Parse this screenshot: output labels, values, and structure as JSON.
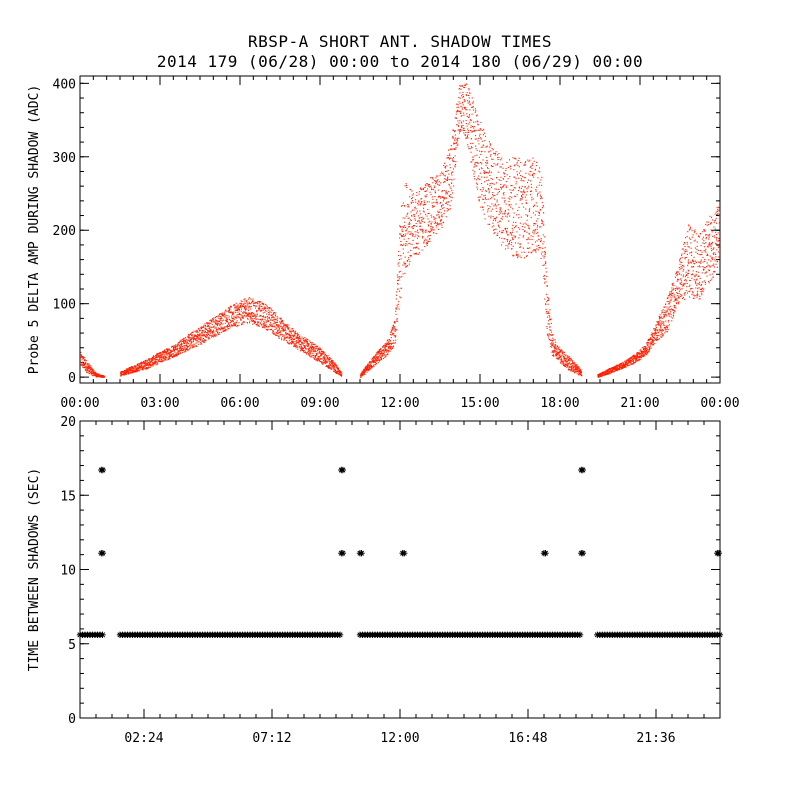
{
  "chart_data": [
    {
      "type": "scatter",
      "title": "RBSP-A SHORT ANT. SHADOW TIMES",
      "subtitle": "2014 179 (06/28) 00:00 to 2014 180 (06/29) 00:00",
      "xlabel": "",
      "ylabel": "Probe 5 DELTA AMP DURING SHADOW (ADC)",
      "xlim": [
        0,
        24
      ],
      "ylim": [
        -8,
        410
      ],
      "xtick_values": [
        0,
        3,
        6,
        9,
        12,
        15,
        18,
        21,
        24
      ],
      "xtick_labels": [
        "00:00",
        "03:00",
        "06:00",
        "09:00",
        "12:00",
        "15:00",
        "18:00",
        "21:00",
        "00:00"
      ],
      "ytick_values": [
        0,
        100,
        200,
        300,
        400
      ],
      "ytick_labels": [
        "0",
        "100",
        "200",
        "300",
        "400"
      ],
      "color": "#ff2000",
      "series_envelope": {
        "name": "Probe 5 delta amplitude",
        "segments": [
          {
            "x": [
              0.0,
              0.2,
              0.45,
              0.6,
              0.9
            ],
            "lower": [
              15,
              8,
              3,
              1,
              0
            ],
            "upper": [
              35,
              25,
              12,
              6,
              2
            ]
          },
          {
            "x": [
              1.5,
              2.5,
              3.5,
              4.5,
              5.5,
              6.3,
              7.0,
              7.5,
              8.0,
              9.0,
              9.5,
              9.8
            ],
            "lower": [
              2,
              12,
              28,
              45,
              65,
              75,
              65,
              52,
              42,
              20,
              8,
              1
            ],
            "upper": [
              8,
              25,
              45,
              70,
              95,
              110,
              100,
              82,
              65,
              40,
              22,
              6
            ]
          },
          {
            "x": [
              10.5,
              11.0,
              11.5,
              11.8,
              12.0,
              12.2,
              12.5,
              13.0,
              13.5,
              13.9,
              14.2,
              14.5,
              14.9,
              15.2,
              15.6,
              16.0,
              16.5,
              17.0,
              17.3,
              17.5,
              17.7,
              17.9,
              18.0,
              18.3,
              18.6,
              18.8
            ],
            "lower": [
              0,
              15,
              30,
              45,
              100,
              150,
              160,
              180,
              200,
              230,
              330,
              320,
              240,
              210,
              190,
              170,
              160,
              170,
              160,
              60,
              30,
              25,
              20,
              10,
              5,
              2
            ],
            "upper": [
              5,
              30,
              50,
              80,
              230,
              270,
              250,
              270,
              280,
              320,
              400,
              400,
              360,
              330,
              310,
              300,
              300,
              300,
              280,
              130,
              60,
              45,
              40,
              30,
              18,
              10
            ]
          },
          {
            "x": [
              19.4,
              19.8,
              20.3,
              20.8,
              21.2,
              21.6,
              22.0,
              22.4,
              22.8,
              23.2,
              23.6,
              24.0
            ],
            "lower": [
              0,
              5,
              12,
              20,
              30,
              50,
              60,
              100,
              110,
              105,
              130,
              150
            ],
            "upper": [
              4,
              12,
              20,
              32,
              45,
              75,
              110,
              150,
              210,
              195,
              220,
              240
            ]
          }
        ]
      }
    },
    {
      "type": "scatter",
      "ylabel": "TIME BETWEEN SHADOWS (SEC)",
      "xlabel": "",
      "xlim": [
        0,
        24
      ],
      "ylim": [
        0,
        20
      ],
      "xtick_values": [
        2.4,
        7.2,
        12.0,
        16.8,
        21.6
      ],
      "xtick_labels": [
        "02:24",
        "07:12",
        "12:00",
        "16:48",
        "21:36"
      ],
      "ytick_values": [
        0,
        5,
        10,
        15,
        20
      ],
      "ytick_labels": [
        "0",
        "5",
        "10",
        "15",
        "20"
      ],
      "marker": "asterisk",
      "baseline": {
        "value": 5.6,
        "segments": [
          [
            0,
            0.9
          ],
          [
            1.5,
            9.8
          ],
          [
            10.5,
            18.8
          ],
          [
            19.4,
            24.0
          ]
        ]
      },
      "points": [
        {
          "x": 0.8,
          "y": 16.7
        },
        {
          "x": 0.8,
          "y": 11.1
        },
        {
          "x": 9.8,
          "y": 16.7
        },
        {
          "x": 9.8,
          "y": 11.1
        },
        {
          "x": 10.5,
          "y": 11.1
        },
        {
          "x": 12.1,
          "y": 11.1
        },
        {
          "x": 17.4,
          "y": 11.1
        },
        {
          "x": 18.8,
          "y": 16.7
        },
        {
          "x": 18.8,
          "y": 11.1
        },
        {
          "x": 23.9,
          "y": 11.1
        }
      ]
    }
  ]
}
